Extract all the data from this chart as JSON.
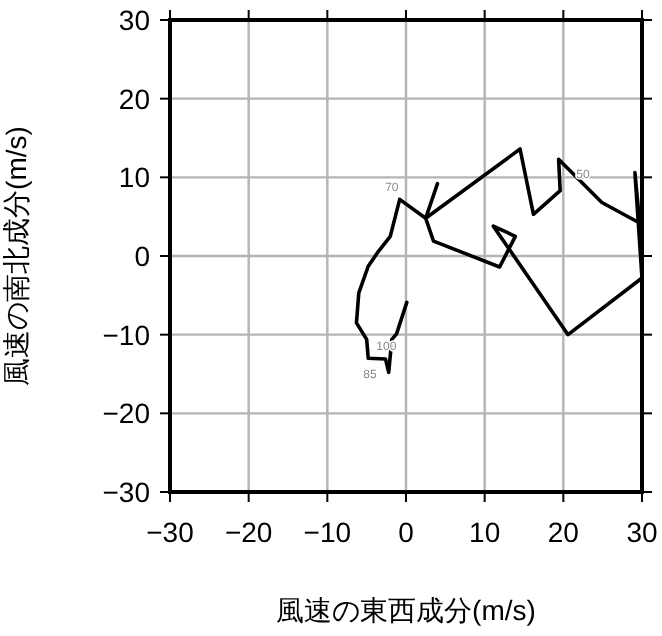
{
  "chart_data": {
    "type": "line",
    "xlabel": "風速の東西成分(m/s)",
    "ylabel": "風速の南北成分(m/s)",
    "xlim": [
      -30,
      30
    ],
    "ylim": [
      -30,
      30
    ],
    "xticks": [
      -30,
      -20,
      -10,
      0,
      10,
      20,
      30
    ],
    "yticks": [
      -30,
      -20,
      -10,
      0,
      10,
      20,
      30
    ],
    "grid": true,
    "series": [
      {
        "color": "#000000",
        "x": [
          0.1,
          -1.2,
          -1.8,
          -2.2,
          -2.6,
          -4.8,
          -5,
          -6.3,
          -6,
          -4.8,
          -3.5,
          -2,
          -0.8,
          2.5,
          4,
          2.5,
          14.5,
          16.2,
          19.6,
          19.4,
          24.9,
          29.7,
          29.1,
          30,
          20.6,
          11.1,
          13.9,
          11.9,
          3.5,
          2.5
        ],
        "values": [
          -5.9,
          -9.9,
          -10.6,
          -14.8,
          -13.1,
          -13,
          -10.6,
          -8.5,
          -4.7,
          -1.3,
          0.6,
          2.5,
          7.2,
          4.8,
          9.2,
          4.8,
          13.6,
          5.3,
          8.3,
          12.3,
          6.8,
          4.2,
          10.6,
          -2.8,
          -10,
          3.8,
          2.5,
          -1.4,
          1.9,
          4.8
        ]
      }
    ],
    "annotations": [
      {
        "text": "70",
        "x": -1.8,
        "y": 8.3
      },
      {
        "text": "85",
        "x": -2.2,
        "y": -14.8
      },
      {
        "text": "100",
        "x": -2.5,
        "y": -12
      },
      {
        "text": "50",
        "x": 22.5,
        "y": 9.9
      }
    ]
  }
}
